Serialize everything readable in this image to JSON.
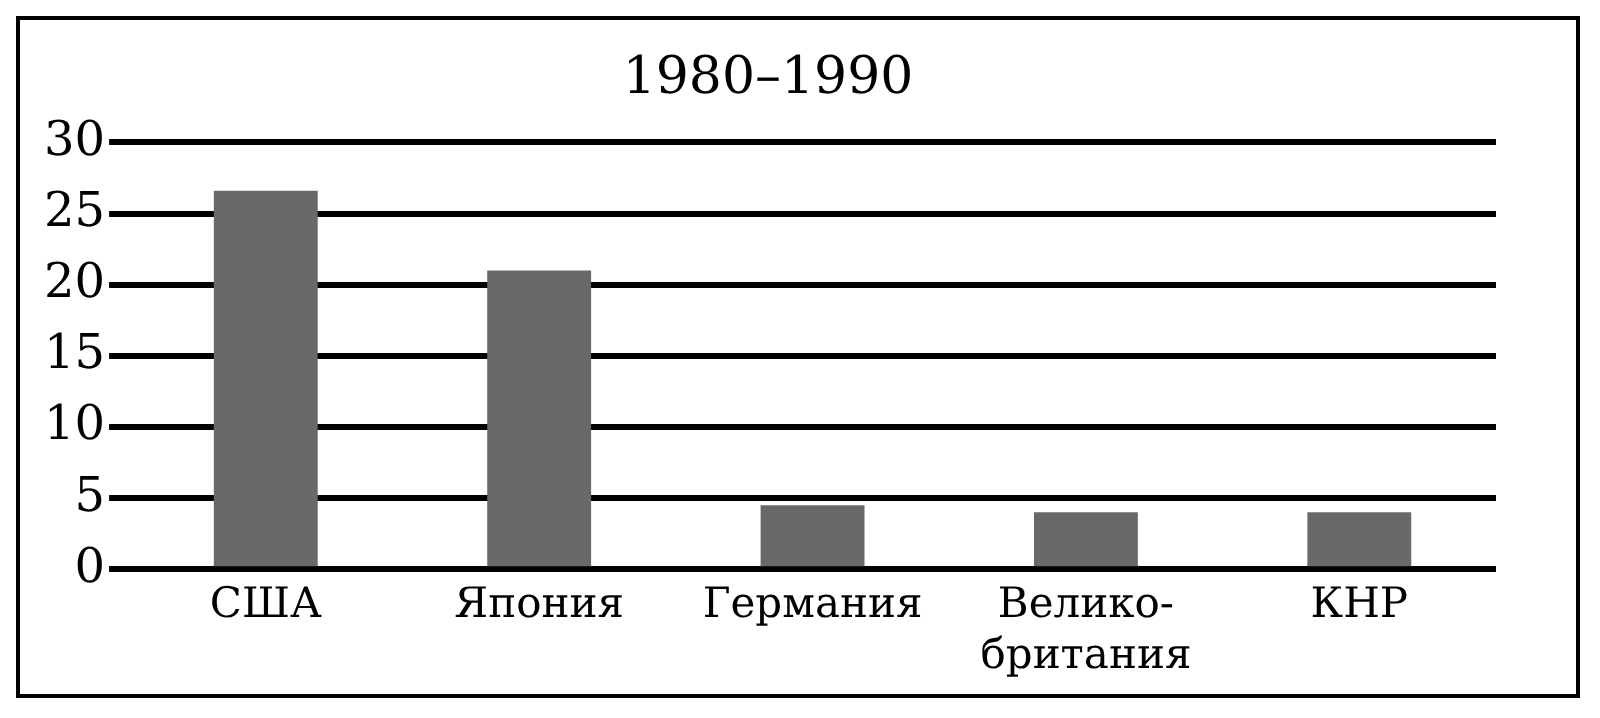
{
  "chart_data": {
    "type": "bar",
    "title": "1980–1990",
    "categories": [
      "США",
      "Япония",
      "Германия",
      "Велико-\nбритания",
      "КНР"
    ],
    "values": [
      26.6,
      21.0,
      4.5,
      4.0,
      4.0
    ],
    "color": "#696969",
    "ylim": [
      0,
      30
    ],
    "yticks": [
      0,
      5,
      10,
      15,
      20,
      25,
      30
    ],
    "grid": "y",
    "legend": false
  }
}
